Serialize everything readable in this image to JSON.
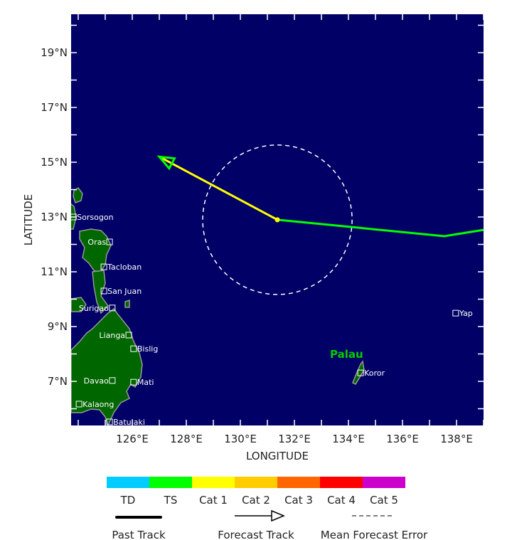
{
  "map": {
    "lon_range": [
      123.8,
      139.0
    ],
    "lat_range": [
      5.4,
      20.4
    ],
    "colors": {
      "ocean": "#000066",
      "land": "#006600",
      "coast": "#999999",
      "past_track": "#00ff00",
      "forecast_track": "#ffff00",
      "arrowhead": "#00ff00",
      "error_circle": "#ffffff"
    },
    "lat_ticks": [
      {
        "value": 19,
        "label": "19°N"
      },
      {
        "value": 17,
        "label": "17°N"
      },
      {
        "value": 15,
        "label": "15°N"
      },
      {
        "value": 13,
        "label": "13°N"
      },
      {
        "value": 11,
        "label": "11°N"
      },
      {
        "value": 9,
        "label": "9°N"
      },
      {
        "value": 7,
        "label": "7°N"
      }
    ],
    "lon_ticks": [
      {
        "value": 126,
        "label": "126°E"
      },
      {
        "value": 128,
        "label": "128°E"
      },
      {
        "value": 130,
        "label": "130°E"
      },
      {
        "value": 132,
        "label": "132°E"
      },
      {
        "value": 134,
        "label": "134°E"
      },
      {
        "value": 136,
        "label": "136°E"
      },
      {
        "value": 138,
        "label": "138°E"
      }
    ],
    "xlabel": "LONGITUDE",
    "ylabel": "LATITUDE",
    "region_label": "Palau",
    "cities": [
      {
        "name": "Sorsogon",
        "lon": 123.82,
        "lat": 13.0
      },
      {
        "name": "Oras",
        "lon": 125.16,
        "lat": 12.09
      },
      {
        "name": "Tacloban",
        "lon": 124.95,
        "lat": 11.18
      },
      {
        "name": "San Juan",
        "lon": 124.95,
        "lat": 10.3
      },
      {
        "name": "Surigao",
        "lon": 125.26,
        "lat": 9.68
      },
      {
        "name": "Lianga",
        "lon": 125.87,
        "lat": 8.69
      },
      {
        "name": "Bislig",
        "lon": 126.05,
        "lat": 8.19
      },
      {
        "name": "Davao",
        "lon": 125.26,
        "lat": 7.03
      },
      {
        "name": "Mati",
        "lon": 126.05,
        "lat": 6.97
      },
      {
        "name": "Kalaong",
        "lon": 124.03,
        "lat": 6.17
      },
      {
        "name": "Batulaki",
        "lon": 125.16,
        "lat": 5.52
      },
      {
        "name": "Koror",
        "lon": 134.45,
        "lat": 7.31
      },
      {
        "name": "Yap",
        "lon": 137.97,
        "lat": 9.49
      }
    ],
    "past_track": [
      [
        139.0,
        12.53
      ],
      [
        137.55,
        12.3
      ],
      [
        131.37,
        12.9
      ]
    ],
    "forecast_track": [
      [
        131.37,
        12.9
      ],
      [
        127.0,
        15.2
      ]
    ],
    "current_position": {
      "lon": 131.37,
      "lat": 12.9
    },
    "mean_forecast_error_radius_deg": 2.75
  },
  "legend": {
    "categories": [
      {
        "label": "TD",
        "color": "#00ccff"
      },
      {
        "label": "TS",
        "color": "#00ff00"
      },
      {
        "label": "Cat 1",
        "color": "#ffff00"
      },
      {
        "label": "Cat 2",
        "color": "#ffcc00"
      },
      {
        "label": "Cat 3",
        "color": "#ff6600"
      },
      {
        "label": "Cat 4",
        "color": "#ff0000"
      },
      {
        "label": "Cat 5",
        "color": "#cc00cc"
      }
    ],
    "past_track": "Past Track",
    "forecast_track": "Forecast Track",
    "mean_error": "Mean Forecast Error"
  }
}
